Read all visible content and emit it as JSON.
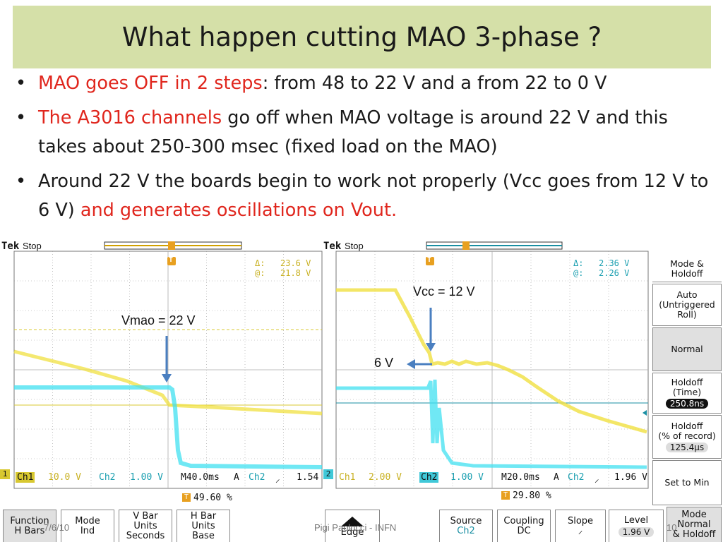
{
  "slide": {
    "title": "What happen cutting MAO 3-phase ?",
    "bullets": [
      {
        "red": "MAO goes OFF in 2 steps",
        "black": ": from 48 to 22 V and a from 22 to 0 V",
        "red_after": ""
      },
      {
        "red": "The A3016 channels",
        "black": " go off when MAO voltage is around 22 V and this takes about 250-300 msec (fixed load on the MAO)",
        "red_after": ""
      },
      {
        "red": "",
        "black": "Around 22 V the boards begin to work not properly (Vcc goes from 12 V to 6 V) ",
        "red_after": "and generates oscillations on Vout."
      }
    ],
    "footer": {
      "date": "7/6/10",
      "author": "Pigi Paolucci - INFN",
      "page": "10"
    }
  },
  "scope_left": {
    "brand": "Tek",
    "status": "Stop",
    "trigger_marker": "T",
    "delta_label": "Δ:",
    "delta_value": "23.6 V",
    "at_label": "@:",
    "at_value": "21.8 V",
    "annotation": "Vmao = 22 V",
    "ch1_label": "Ch1",
    "ch1_scale": "10.0 V",
    "ch2_label": "Ch2",
    "ch2_scale": "1.00 V",
    "timebase": "M40.0ms",
    "trig_mode": "A",
    "trig_src": "Ch2",
    "trig_slope": "⸝",
    "trig_level": "1.54",
    "trig_pos_marker": "T",
    "trig_pos": "49.60 %",
    "ch1_marker": "1"
  },
  "scope_right": {
    "brand": "Tek",
    "status": "Stop",
    "trigger_marker": "T",
    "delta_label": "Δ:",
    "delta_value": "2.36 V",
    "at_label": "@:",
    "at_value": "2.26 V",
    "annotation_vcc": "Vcc = 12 V",
    "annotation_6v": "6 V",
    "ch1_label": "Ch1",
    "ch1_scale": "2.00 V",
    "ch2_label": "Ch2",
    "ch2_scale": "1.00 V",
    "timebase": "M20.0ms",
    "trig_mode": "A",
    "trig_src": "Ch2",
    "trig_slope": "⸝",
    "trig_level": "1.96 V",
    "trig_pos_marker": "T",
    "trig_pos": "29.80 %",
    "ch2_marker": "2"
  },
  "side_menu": {
    "header_l1": "Mode &",
    "header_l2": "Holdoff",
    "auto_l1": "Auto",
    "auto_l2": "(Untriggered",
    "auto_l3": "Roll)",
    "normal": "Normal",
    "holdoff_time_l1": "Holdoff",
    "holdoff_time_l2": "(Time)",
    "holdoff_time_value": "250.8ns",
    "holdoff_rec_l1": "Holdoff",
    "holdoff_rec_l2": "(% of record)",
    "holdoff_rec_value": "125.4µs",
    "set_to_min": "Set to Min"
  },
  "bottom_left_menu": {
    "function_l1": "Function",
    "function_l2": "H Bars",
    "mode_l1": "Mode",
    "mode_l2": "Ind",
    "vbar_l1": "V Bar",
    "vbar_l2": "Units",
    "vbar_l3": "Seconds",
    "hbar_l1": "H Bar",
    "hbar_l2": "Units",
    "hbar_l3": "Base"
  },
  "bottom_right_menu": {
    "type": "Edge",
    "source_l1": "Source",
    "source_l2": "Ch2",
    "coupling_l1": "Coupling",
    "coupling_l2": "DC",
    "slope_l1": "Slope",
    "slope_l2": "⸝",
    "level_l1": "Level",
    "level_value": "1.96 V",
    "mode_l1": "Mode",
    "mode_l2": "Normal",
    "mode_l3": "& Holdoff"
  },
  "colors": {
    "ch1_yellow": "#f0e040",
    "ch2_cyan": "#40e0f0",
    "arrow_blue": "#4a7fc0",
    "text_red": "#e0261d",
    "title_bg": "#d5e0a8"
  }
}
